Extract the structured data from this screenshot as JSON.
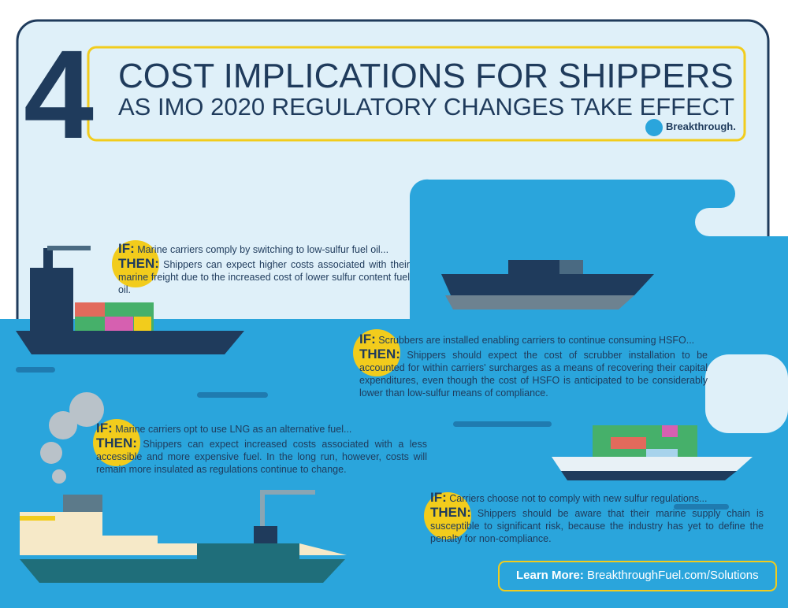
{
  "header": {
    "number": "4",
    "title": "COST IMPLICATIONS FOR SHIPPERS",
    "subtitle": "AS IMO 2020 REGULATORY CHANGES TAKE EFFECT",
    "logo": "Breakthrough."
  },
  "items": [
    {
      "if_label": "IF:",
      "if_text": "Marine carriers comply by switching to low-sulfur fuel oil...",
      "then_label": "THEN:",
      "then_text": "Shippers can expect higher costs associated with their marine freight due to the increased cost of lower sulfur content fuel oil."
    },
    {
      "if_label": "IF:",
      "if_text": "Scrubbers are installed enabling carriers to continue consuming HSFO...",
      "then_label": "THEN:",
      "then_text": "Shippers should expect the cost of scrubber installation to be accounted for within carriers' surcharges as a means of recovering their capital expenditures, even though the cost of HSFO is anticipated to be considerably lower than low-sulfur means of compliance."
    },
    {
      "if_label": "IF:",
      "if_text": "Marine carriers opt to use LNG as an alternative fuel...",
      "then_label": "THEN:",
      "then_text": "Shippers can expect increased costs associated with a less accessible and more expensive fuel. In the long run, however, costs will remain more insulated as regulations continue to change."
    },
    {
      "if_label": "IF:",
      "if_text": "Carriers choose not to comply with new sulfur regulations...",
      "then_label": "THEN:",
      "then_text": "Shippers should be aware that their marine supply chain is susceptible to significant risk, because the industry has yet to define the penalty for non-compliance."
    }
  ],
  "footer": {
    "label": "Learn More:",
    "link": "BreakthroughFuel.com/Solutions"
  }
}
